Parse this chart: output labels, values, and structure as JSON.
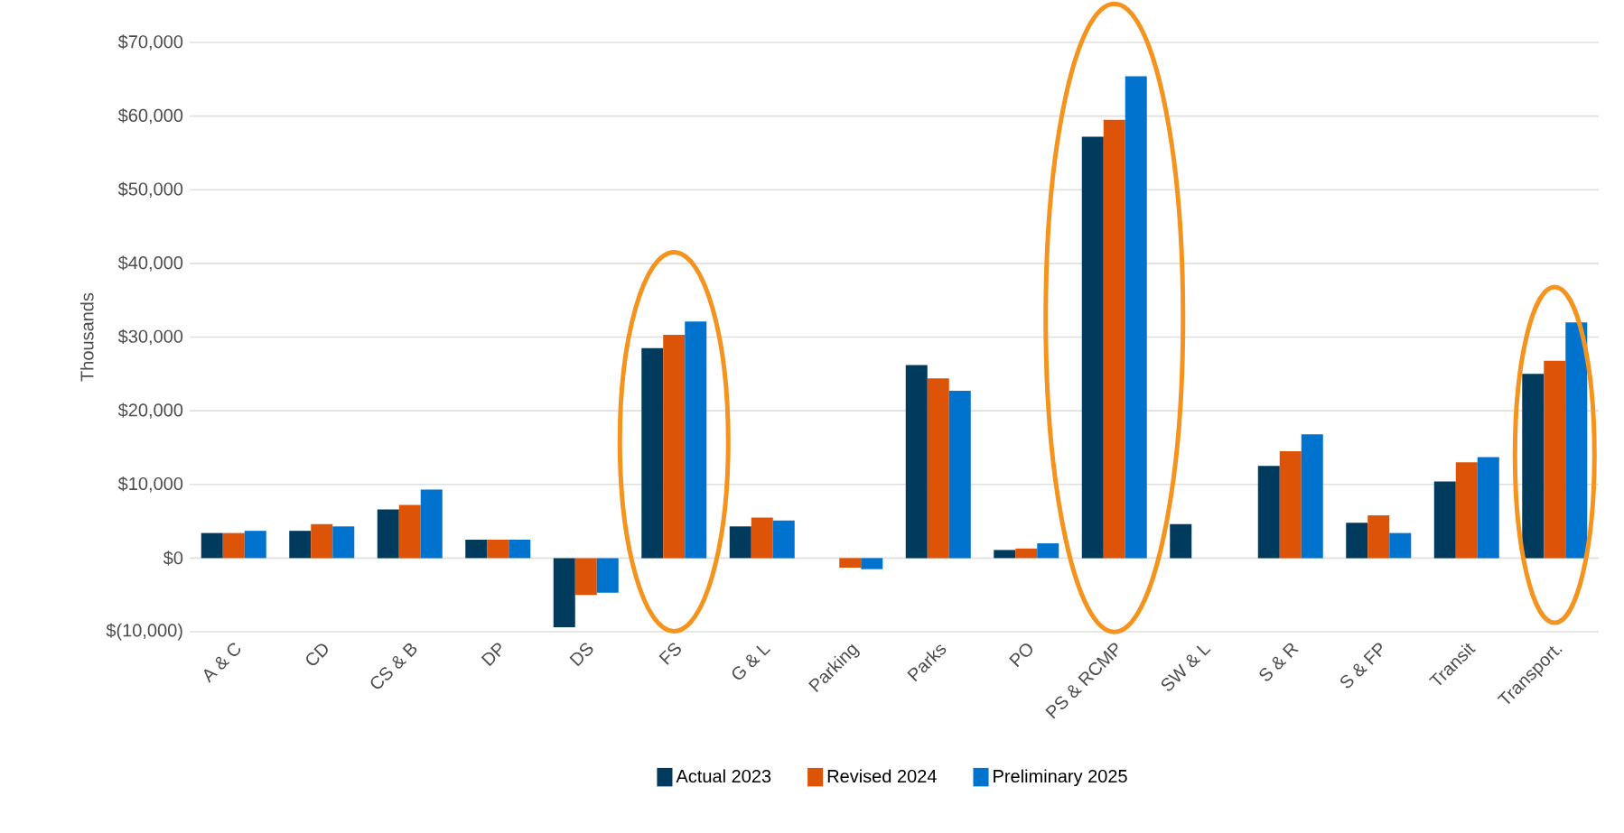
{
  "chart_data": {
    "type": "bar",
    "ylabel": "Thousands",
    "categories": [
      "A & C",
      "CD",
      "CS & B",
      "DP",
      "DS",
      "FS",
      "G & L",
      "Parking",
      "Parks",
      "PO",
      "PS & RCMP",
      "SW & L",
      "S & R",
      "S & FP",
      "Transit",
      "Transport."
    ],
    "series": [
      {
        "name": "Actual 2023",
        "color": "#003a5d",
        "values": [
          3400,
          3700,
          6600,
          2500,
          -9400,
          28500,
          4300,
          0,
          26200,
          1100,
          57200,
          4600,
          12500,
          4800,
          10400,
          25000
        ]
      },
      {
        "name": "Revised 2024",
        "color": "#dd5307",
        "values": [
          3400,
          4600,
          7200,
          2500,
          -5000,
          30300,
          5500,
          -1300,
          24400,
          1300,
          59500,
          0,
          14500,
          5800,
          13000,
          26800
        ]
      },
      {
        "name": "Preliminary 2025",
        "color": "#0073cf",
        "values": [
          3700,
          4300,
          9300,
          2500,
          -4700,
          32100,
          5100,
          -1500,
          22700,
          2000,
          65400,
          0,
          16800,
          3400,
          13700,
          32000
        ]
      }
    ],
    "ylim": [
      -10000,
      70000
    ],
    "yticks": [
      {
        "value": -10000,
        "label": "$(10,000)"
      },
      {
        "value": 0,
        "label": "$0"
      },
      {
        "value": 10000,
        "label": "$10,000"
      },
      {
        "value": 20000,
        "label": "$20,000"
      },
      {
        "value": 30000,
        "label": "$30,000"
      },
      {
        "value": 40000,
        "label": "$40,000"
      },
      {
        "value": 50000,
        "label": "$50,000"
      },
      {
        "value": 60000,
        "label": "$60,000"
      },
      {
        "value": 70000,
        "label": "$70,000"
      }
    ],
    "grid": "y",
    "legend": "bottom"
  }
}
